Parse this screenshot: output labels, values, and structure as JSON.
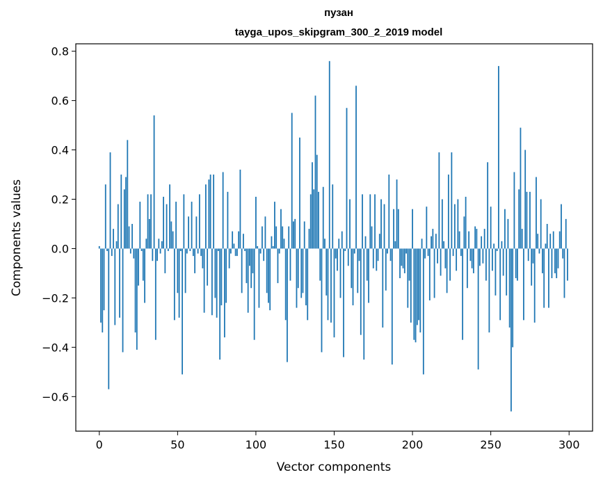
{
  "chart_data": {
    "type": "bar",
    "title_line1": "пузан",
    "title_line2": "tayga_upos_skipgram_300_2_2019 model",
    "xlabel": "Vector components",
    "ylabel": "Components values",
    "xlim": [
      -15,
      315
    ],
    "ylim": [
      -0.74,
      0.83
    ],
    "xticks": [
      {
        "value": 0,
        "label": "0"
      },
      {
        "value": 50,
        "label": "50"
      },
      {
        "value": 100,
        "label": "100"
      },
      {
        "value": 150,
        "label": "150"
      },
      {
        "value": 200,
        "label": "200"
      },
      {
        "value": 250,
        "label": "250"
      },
      {
        "value": 300,
        "label": "300"
      }
    ],
    "yticks": [
      {
        "value": -0.6,
        "label": "−0.6"
      },
      {
        "value": -0.4,
        "label": "−0.4"
      },
      {
        "value": -0.2,
        "label": "−0.2"
      },
      {
        "value": 0.0,
        "label": "0.0"
      },
      {
        "value": 0.2,
        "label": "0.2"
      },
      {
        "value": 0.4,
        "label": "0.4"
      },
      {
        "value": 0.6,
        "label": "0.6"
      },
      {
        "value": 0.8,
        "label": "0.8"
      }
    ],
    "bar_color": "#1f77b4",
    "values": [
      0.01,
      -0.3,
      -0.34,
      -0.25,
      0.26,
      -0.01,
      -0.57,
      0.39,
      -0.03,
      0.08,
      -0.31,
      0.03,
      0.18,
      -0.28,
      0.3,
      -0.42,
      0.24,
      0.29,
      0.44,
      0.09,
      -0.02,
      0.1,
      -0.04,
      -0.34,
      -0.41,
      -0.15,
      0.19,
      -0.01,
      -0.13,
      -0.22,
      0.04,
      0.22,
      0.12,
      0.22,
      -0.05,
      0.54,
      -0.37,
      -0.05,
      0.04,
      -0.02,
      0.03,
      0.21,
      -0.1,
      0.18,
      -0.01,
      0.26,
      0.11,
      0.07,
      -0.29,
      0.19,
      -0.18,
      -0.28,
      -0.01,
      -0.51,
      0.22,
      -0.18,
      -0.02,
      0.13,
      -0.01,
      0.19,
      -0.03,
      -0.1,
      0.13,
      -0.02,
      0.22,
      -0.03,
      -0.08,
      -0.26,
      0.26,
      -0.15,
      0.28,
      0.3,
      -0.27,
      0.3,
      -0.2,
      -0.28,
      -0.01,
      -0.45,
      -0.23,
      0.31,
      -0.36,
      -0.22,
      0.23,
      -0.08,
      -0.02,
      0.07,
      0.02,
      -0.03,
      -0.03,
      0.07,
      0.32,
      -0.18,
      0.06,
      -0.01,
      -0.14,
      -0.26,
      -0.07,
      -0.16,
      -0.1,
      -0.37,
      0.21,
      0.01,
      -0.24,
      -0.02,
      0.09,
      -0.05,
      0.13,
      -0.18,
      -0.22,
      -0.25,
      0.05,
      0.01,
      0.19,
      0.09,
      -0.14,
      -0.02,
      0.16,
      0.09,
      0.04,
      -0.29,
      -0.46,
      0.09,
      -0.13,
      0.55,
      0.11,
      0.12,
      -0.24,
      -0.16,
      0.45,
      -0.2,
      -0.18,
      0.11,
      -0.23,
      -0.29,
      0.08,
      0.22,
      0.35,
      0.24,
      0.62,
      0.38,
      0.23,
      -0.13,
      -0.42,
      0.25,
      0.04,
      -0.19,
      -0.29,
      0.76,
      -0.3,
      0.26,
      -0.36,
      -0.04,
      -0.09,
      0.04,
      -0.2,
      0.07,
      -0.44,
      -0.01,
      0.57,
      -0.07,
      0.2,
      -0.16,
      -0.23,
      -0.02,
      0.66,
      -0.18,
      -0.05,
      -0.35,
      0.22,
      -0.45,
      0.05,
      -0.13,
      -0.22,
      0.22,
      0.09,
      -0.08,
      0.22,
      -0.09,
      -0.05,
      0.06,
      0.2,
      -0.32,
      0.18,
      -0.17,
      -0.02,
      0.3,
      -0.05,
      -0.47,
      0.16,
      0.03,
      0.28,
      0.16,
      -0.12,
      -0.07,
      -0.08,
      -0.1,
      -0.02,
      -0.24,
      -0.13,
      -0.3,
      0.16,
      -0.37,
      -0.38,
      -0.31,
      -0.29,
      -0.34,
      0.04,
      -0.51,
      -0.04,
      0.17,
      -0.03,
      -0.21,
      0.05,
      0.08,
      -0.2,
      0.06,
      -0.06,
      0.39,
      -0.11,
      0.2,
      0.03,
      -0.08,
      -0.18,
      0.3,
      -0.13,
      0.39,
      -0.03,
      0.18,
      -0.09,
      0.2,
      0.07,
      -0.03,
      -0.37,
      0.13,
      0.21,
      -0.16,
      0.07,
      -0.05,
      -0.08,
      -0.1,
      0.09,
      0.08,
      -0.49,
      -0.07,
      0.05,
      -0.06,
      0.08,
      -0.13,
      0.35,
      -0.34,
      0.17,
      -0.09,
      0.02,
      -0.19,
      -0.01,
      0.74,
      -0.29,
      0.03,
      -0.11,
      0.16,
      -0.19,
      0.12,
      -0.32,
      -0.66,
      -0.4,
      0.31,
      -0.12,
      -0.13,
      0.24,
      0.49,
      0.08,
      -0.29,
      0.4,
      0.23,
      -0.05,
      0.23,
      -0.15,
      -0.06,
      -0.3,
      0.29,
      0.06,
      -0.02,
      0.2,
      -0.1,
      -0.24,
      0.02,
      0.1,
      -0.24,
      0.06,
      -0.12,
      0.07,
      -0.1,
      -0.12,
      -0.08,
      0.07,
      0.18,
      -0.04,
      -0.2,
      0.12,
      -0.13
    ]
  }
}
